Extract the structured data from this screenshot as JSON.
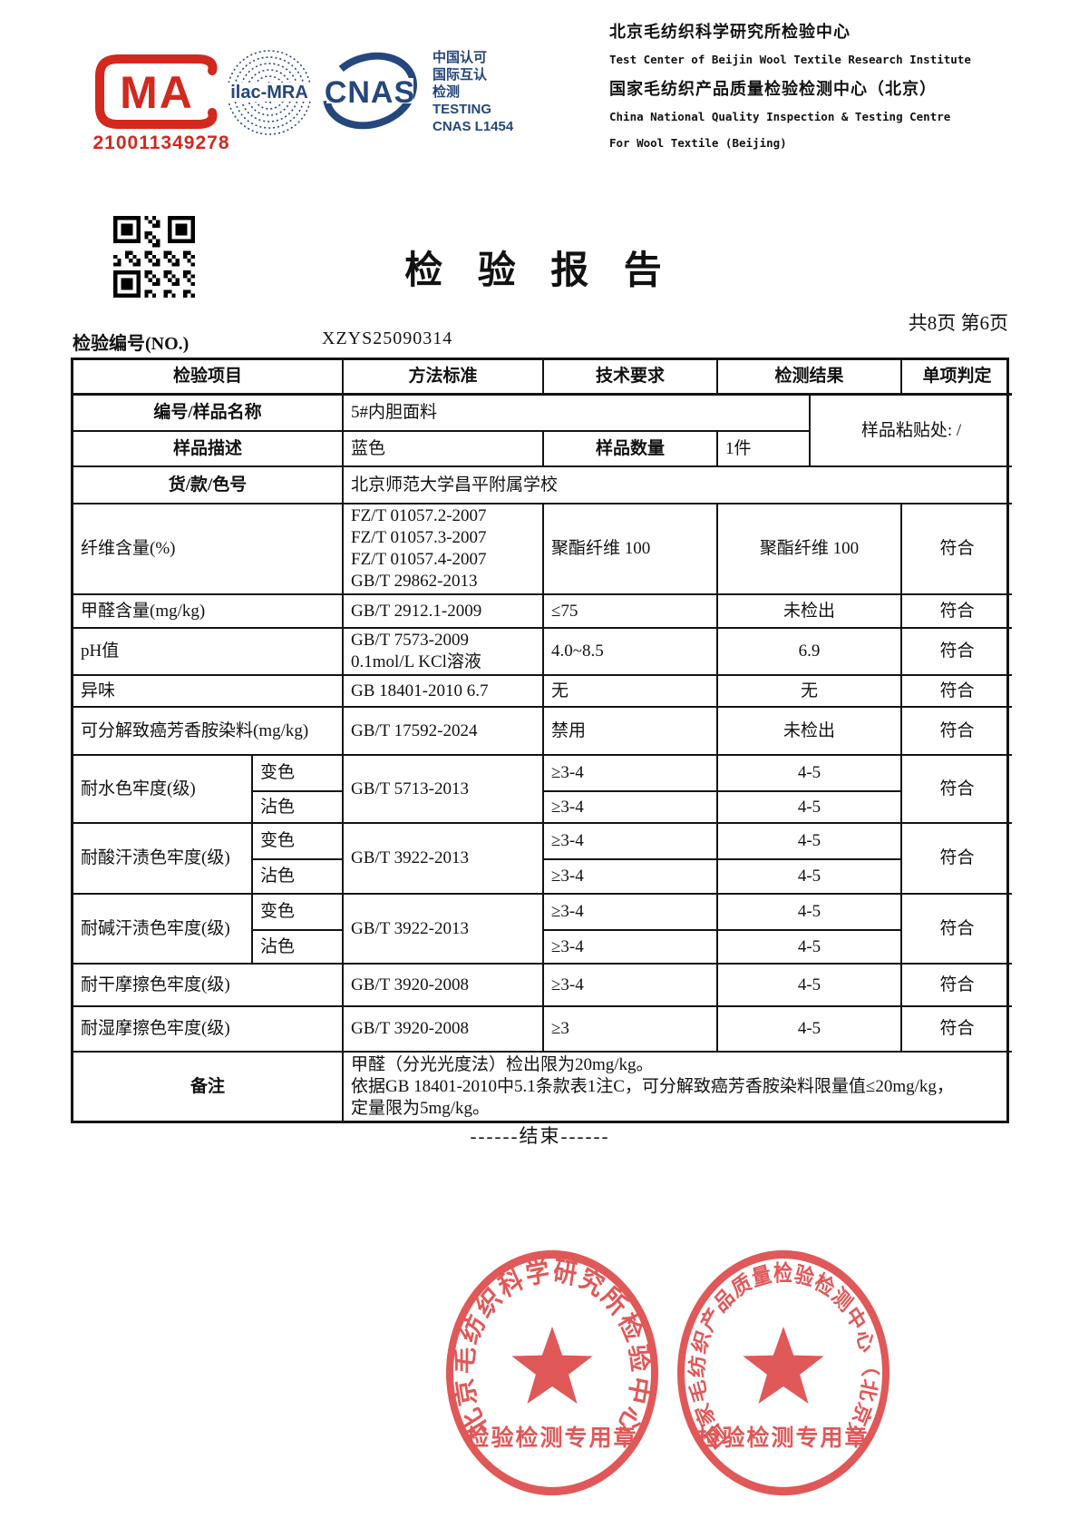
{
  "certifications": {
    "cma": {
      "letters": "MA",
      "number": "210011349278"
    },
    "ilac": {
      "label": "ilac-MRA"
    },
    "cnas": {
      "label": "CNAS",
      "side_text": "中国认可\n国际互认\n检测\nTESTING\nCNAS L1454"
    }
  },
  "letterhead": {
    "line1_cn": "北京毛纺织科学研究所检验中心",
    "line1_en": "Test Center of Beijin Wool Textile Research Institute",
    "line2_cn": "国家毛纺织产品质量检验检测中心（北京）",
    "line2_en1": "China National Quality Inspection & Testing Centre",
    "line2_en2": "For Wool Textile (Beijing)"
  },
  "title": "检 验 报 告",
  "page_info": "共8页 第6页",
  "report_no_label": "检验编号(NO.)",
  "report_no": "XZYS25090314",
  "table": {
    "header": [
      "检验项目",
      "方法标准",
      "技术要求",
      "检测结果",
      "单项判定"
    ],
    "sample": {
      "name_label": "编号/样品名称",
      "name": "5#内胆面料",
      "paste_label": "样品粘贴处: /",
      "desc_label": "样品描述",
      "desc": "蓝色",
      "qty_label": "样品数量",
      "qty": "1件",
      "style_label": "货/款/色号",
      "style": "北京师范大学昌平附属学校"
    },
    "rows": {
      "fiber": {
        "name": "纤维含量(%)",
        "method": "FZ/T 01057.2-2007\nFZ/T 01057.3-2007\nFZ/T 01057.4-2007\nGB/T 29862-2013",
        "req": "聚酯纤维 100",
        "result": "聚酯纤维 100",
        "verdict": "符合"
      },
      "formaldehyde": {
        "name": "甲醛含量(mg/kg)",
        "method": "GB/T 2912.1-2009",
        "req": "≤75",
        "result": "未检出",
        "verdict": "符合"
      },
      "ph": {
        "name": "pH值",
        "method": "GB/T 7573-2009\n0.1mol/L KCl溶液",
        "req": "4.0~8.5",
        "result": "6.9",
        "verdict": "符合"
      },
      "odor": {
        "name": "异味",
        "method": "GB 18401-2010 6.7",
        "req": "无",
        "result": "无",
        "verdict": "符合"
      },
      "amines": {
        "name": "可分解致癌芳香胺染料(mg/kg)",
        "method": "GB/T 17592-2024",
        "req": "禁用",
        "result": "未检出",
        "verdict": "符合"
      },
      "water": {
        "name": "耐水色牢度(级)",
        "sub1": "变色",
        "sub2": "沾色",
        "method": "GB/T 5713-2013",
        "req1": "≥3-4",
        "req2": "≥3-4",
        "res1": "4-5",
        "res2": "4-5",
        "verdict": "符合"
      },
      "acid": {
        "name": "耐酸汗渍色牢度(级)",
        "sub1": "变色",
        "sub2": "沾色",
        "method": "GB/T 3922-2013",
        "req1": "≥3-4",
        "req2": "≥3-4",
        "res1": "4-5",
        "res2": "4-5",
        "verdict": "符合"
      },
      "alkali": {
        "name": "耐碱汗渍色牢度(级)",
        "sub1": "变色",
        "sub2": "沾色",
        "method": "GB/T 3922-2013",
        "req1": "≥3-4",
        "req2": "≥3-4",
        "res1": "4-5",
        "res2": "4-5",
        "verdict": "符合"
      },
      "dry_rub": {
        "name": "耐干摩擦色牢度(级)",
        "method": "GB/T 3920-2008",
        "req": "≥3-4",
        "result": "4-5",
        "verdict": "符合"
      },
      "wet_rub": {
        "name": "耐湿摩擦色牢度(级)",
        "method": "GB/T 3920-2008",
        "req": "≥3",
        "result": "4-5",
        "verdict": "符合"
      }
    },
    "remarks_label": "备注",
    "remarks": "甲醛（分光光度法）检出限为20mg/kg。\n依据GB 18401-2010中5.1条款表1注C，可分解致癌芳香胺染料限量值≤20mg/kg，\n定量限为5mg/kg。"
  },
  "end_line": "------结束------",
  "stamps": {
    "left": {
      "ring_text": "北京毛纺织科学研究所检验中心",
      "bottom_text": "检验检测专用章"
    },
    "right": {
      "ring_text": "国家毛纺织产品质量检验检测中心（北京）",
      "bottom_text": "检验检测专用章"
    }
  },
  "colors": {
    "accent_red": "#d3281e",
    "navy": "#25477d",
    "stamp_red": "#e05050",
    "ink": "#121212"
  }
}
